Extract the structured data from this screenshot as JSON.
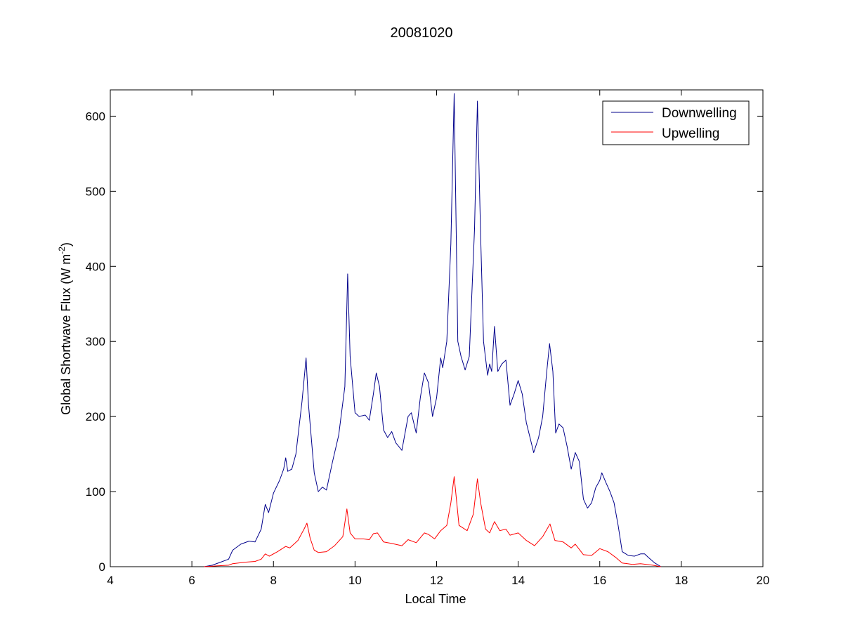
{
  "chart_data": {
    "type": "line",
    "title": "20081020",
    "xlabel": "Local Time",
    "ylabel": "Global Shortwave Flux (W m",
    "ylabel_sup": "-2",
    "ylabel_close": ")",
    "xlim": [
      4,
      20
    ],
    "ylim": [
      0,
      635
    ],
    "xticks": [
      4,
      6,
      8,
      10,
      12,
      14,
      16,
      18,
      20
    ],
    "yticks": [
      0,
      100,
      200,
      300,
      400,
      500,
      600
    ],
    "grid": false,
    "legend_position": "top-right",
    "series": [
      {
        "name": "Downwelling",
        "color": "#00008B",
        "points": [
          [
            6.3,
            0
          ],
          [
            6.5,
            2
          ],
          [
            6.7,
            6
          ],
          [
            6.9,
            10
          ],
          [
            7.0,
            22
          ],
          [
            7.2,
            30
          ],
          [
            7.4,
            34
          ],
          [
            7.55,
            33
          ],
          [
            7.7,
            50
          ],
          [
            7.8,
            83
          ],
          [
            7.88,
            72
          ],
          [
            8.0,
            98
          ],
          [
            8.15,
            115
          ],
          [
            8.25,
            130
          ],
          [
            8.3,
            145
          ],
          [
            8.35,
            127
          ],
          [
            8.45,
            130
          ],
          [
            8.55,
            150
          ],
          [
            8.7,
            220
          ],
          [
            8.8,
            278
          ],
          [
            8.86,
            215
          ],
          [
            9.0,
            125
          ],
          [
            9.1,
            100
          ],
          [
            9.2,
            106
          ],
          [
            9.3,
            102
          ],
          [
            9.45,
            140
          ],
          [
            9.6,
            175
          ],
          [
            9.75,
            240
          ],
          [
            9.82,
            390
          ],
          [
            9.88,
            280
          ],
          [
            10.0,
            205
          ],
          [
            10.1,
            200
          ],
          [
            10.25,
            202
          ],
          [
            10.35,
            195
          ],
          [
            10.45,
            230
          ],
          [
            10.52,
            258
          ],
          [
            10.6,
            240
          ],
          [
            10.7,
            182
          ],
          [
            10.8,
            172
          ],
          [
            10.9,
            180
          ],
          [
            11.0,
            165
          ],
          [
            11.15,
            155
          ],
          [
            11.3,
            200
          ],
          [
            11.38,
            205
          ],
          [
            11.5,
            178
          ],
          [
            11.6,
            225
          ],
          [
            11.7,
            258
          ],
          [
            11.8,
            245
          ],
          [
            11.9,
            200
          ],
          [
            12.0,
            225
          ],
          [
            12.1,
            278
          ],
          [
            12.15,
            265
          ],
          [
            12.25,
            300
          ],
          [
            12.35,
            430
          ],
          [
            12.43,
            630
          ],
          [
            12.52,
            300
          ],
          [
            12.6,
            280
          ],
          [
            12.7,
            262
          ],
          [
            12.8,
            280
          ],
          [
            12.93,
            450
          ],
          [
            13.0,
            620
          ],
          [
            13.08,
            440
          ],
          [
            13.15,
            300
          ],
          [
            13.25,
            255
          ],
          [
            13.3,
            270
          ],
          [
            13.35,
            260
          ],
          [
            13.42,
            320
          ],
          [
            13.5,
            260
          ],
          [
            13.6,
            270
          ],
          [
            13.7,
            275
          ],
          [
            13.8,
            215
          ],
          [
            13.9,
            230
          ],
          [
            14.0,
            248
          ],
          [
            14.1,
            230
          ],
          [
            14.2,
            192
          ],
          [
            14.3,
            170
          ],
          [
            14.38,
            152
          ],
          [
            14.5,
            172
          ],
          [
            14.6,
            200
          ],
          [
            14.7,
            260
          ],
          [
            14.77,
            297
          ],
          [
            14.85,
            260
          ],
          [
            14.92,
            178
          ],
          [
            15.0,
            190
          ],
          [
            15.1,
            185
          ],
          [
            15.2,
            160
          ],
          [
            15.3,
            130
          ],
          [
            15.4,
            152
          ],
          [
            15.5,
            140
          ],
          [
            15.6,
            90
          ],
          [
            15.7,
            78
          ],
          [
            15.8,
            85
          ],
          [
            15.9,
            105
          ],
          [
            16.0,
            115
          ],
          [
            16.05,
            125
          ],
          [
            16.15,
            112
          ],
          [
            16.25,
            100
          ],
          [
            16.35,
            85
          ],
          [
            16.45,
            55
          ],
          [
            16.55,
            20
          ],
          [
            16.7,
            15
          ],
          [
            16.85,
            14
          ],
          [
            17.0,
            17
          ],
          [
            17.1,
            17
          ],
          [
            17.2,
            12
          ],
          [
            17.35,
            5
          ],
          [
            17.5,
            0
          ]
        ]
      },
      {
        "name": "Upwelling",
        "color": "#FF0000",
        "points": [
          [
            6.3,
            0
          ],
          [
            6.6,
            1
          ],
          [
            6.9,
            2
          ],
          [
            7.0,
            4
          ],
          [
            7.3,
            6
          ],
          [
            7.55,
            7
          ],
          [
            7.7,
            10
          ],
          [
            7.8,
            17
          ],
          [
            7.9,
            14
          ],
          [
            8.1,
            20
          ],
          [
            8.3,
            27
          ],
          [
            8.4,
            25
          ],
          [
            8.6,
            35
          ],
          [
            8.75,
            50
          ],
          [
            8.82,
            58
          ],
          [
            8.9,
            38
          ],
          [
            9.0,
            22
          ],
          [
            9.1,
            19
          ],
          [
            9.3,
            20
          ],
          [
            9.5,
            28
          ],
          [
            9.7,
            40
          ],
          [
            9.8,
            77
          ],
          [
            9.88,
            45
          ],
          [
            10.0,
            37
          ],
          [
            10.2,
            37
          ],
          [
            10.35,
            36
          ],
          [
            10.45,
            44
          ],
          [
            10.55,
            45
          ],
          [
            10.7,
            33
          ],
          [
            10.9,
            31
          ],
          [
            11.15,
            28
          ],
          [
            11.3,
            36
          ],
          [
            11.5,
            32
          ],
          [
            11.7,
            45
          ],
          [
            11.8,
            43
          ],
          [
            11.95,
            37
          ],
          [
            12.1,
            48
          ],
          [
            12.25,
            55
          ],
          [
            12.35,
            85
          ],
          [
            12.43,
            120
          ],
          [
            12.55,
            55
          ],
          [
            12.75,
            48
          ],
          [
            12.9,
            70
          ],
          [
            13.0,
            117
          ],
          [
            13.08,
            85
          ],
          [
            13.2,
            50
          ],
          [
            13.3,
            45
          ],
          [
            13.42,
            60
          ],
          [
            13.55,
            48
          ],
          [
            13.7,
            50
          ],
          [
            13.8,
            42
          ],
          [
            14.0,
            45
          ],
          [
            14.2,
            35
          ],
          [
            14.4,
            28
          ],
          [
            14.6,
            40
          ],
          [
            14.78,
            57
          ],
          [
            14.9,
            35
          ],
          [
            15.1,
            33
          ],
          [
            15.3,
            25
          ],
          [
            15.4,
            30
          ],
          [
            15.6,
            16
          ],
          [
            15.8,
            15
          ],
          [
            16.0,
            24
          ],
          [
            16.2,
            20
          ],
          [
            16.4,
            12
          ],
          [
            16.55,
            5
          ],
          [
            16.8,
            3
          ],
          [
            17.0,
            4
          ],
          [
            17.3,
            2
          ],
          [
            17.5,
            0
          ]
        ]
      }
    ]
  }
}
